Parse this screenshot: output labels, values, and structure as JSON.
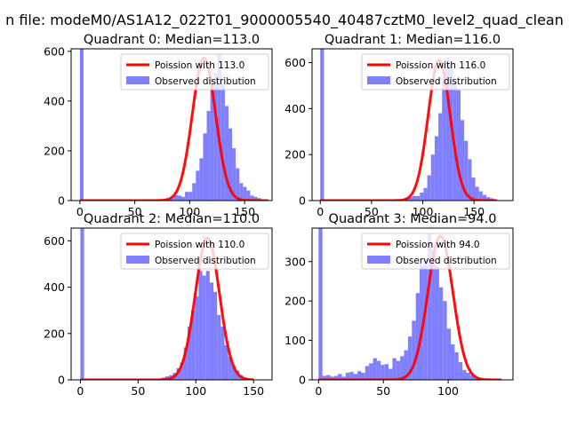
{
  "suptitle": "n file: modeM0/AS1A12_022T01_9000005540_40487cztM0_level2_quad_clean",
  "colors": {
    "hist": "#8080ff",
    "poisson": "#ff0000"
  },
  "chart_data": [
    {
      "type": "bar",
      "title": "Quadrant 0: Median=113.0",
      "median": 113.0,
      "xlim": [
        -8,
        175
      ],
      "ylim": [
        0,
        610
      ],
      "xticks": [
        0,
        50,
        100,
        150
      ],
      "yticks": [
        0,
        200,
        400,
        600
      ],
      "legend": [
        "Poission with 113.0",
        "Observed distribution"
      ],
      "legend_position": "top-right",
      "poisson_lambda": 113.0,
      "poisson_peak": 573,
      "bin_start": 0,
      "bin_width": 3.3,
      "values": [
        1200,
        0,
        0,
        0,
        0,
        0,
        0,
        0,
        0,
        0,
        0,
        0,
        0,
        0,
        0,
        0,
        0,
        0,
        0,
        0,
        0,
        0,
        0,
        0,
        0,
        10,
        22,
        20,
        15,
        35,
        35,
        70,
        120,
        170,
        270,
        360,
        470,
        510,
        590,
        470,
        380,
        290,
        210,
        130,
        70,
        55,
        40,
        20,
        15,
        10,
        5,
        0
      ]
    },
    {
      "type": "bar",
      "title": "Quadrant 1: Median=116.0",
      "median": 116.0,
      "xlim": [
        -8,
        188
      ],
      "ylim": [
        0,
        660
      ],
      "xticks": [
        0,
        50,
        100,
        150
      ],
      "yticks": [
        0,
        200,
        400,
        600
      ],
      "legend": [
        "Poission with 116.0",
        "Observed distribution"
      ],
      "legend_position": "top-right",
      "poisson_lambda": 116.0,
      "poisson_peak": 611,
      "bin_start": 0,
      "bin_width": 3.6,
      "values": [
        1200,
        0,
        0,
        0,
        0,
        0,
        0,
        0,
        0,
        0,
        0,
        0,
        0,
        0,
        0,
        0,
        0,
        0,
        0,
        0,
        0,
        0,
        0,
        12,
        15,
        20,
        20,
        35,
        55,
        110,
        200,
        280,
        380,
        530,
        620,
        590,
        520,
        480,
        350,
        260,
        180,
        100,
        60,
        40,
        25,
        15,
        10,
        0
      ]
    },
    {
      "type": "bar",
      "title": "Quadrant 2: Median=110.0",
      "median": 110.0,
      "xlim": [
        -8,
        166
      ],
      "ylim": [
        0,
        655
      ],
      "xticks": [
        0,
        50,
        100,
        150
      ],
      "yticks": [
        0,
        200,
        400,
        600
      ],
      "legend": [
        "Poission with 110.0",
        "Observed distribution"
      ],
      "legend_position": "top-right",
      "poisson_lambda": 110.0,
      "poisson_peak": 612,
      "bin_start": 0,
      "bin_width": 3.2,
      "values": [
        1200,
        0,
        0,
        0,
        0,
        0,
        0,
        0,
        0,
        0,
        0,
        0,
        0,
        0,
        0,
        0,
        0,
        0,
        0,
        0,
        0,
        5,
        10,
        15,
        20,
        30,
        50,
        75,
        140,
        230,
        300,
        360,
        470,
        450,
        470,
        420,
        380,
        280,
        230,
        150,
        100,
        60,
        40,
        20,
        10,
        5,
        0
      ]
    },
    {
      "type": "bar",
      "title": "Quadrant 3: Median=94.0",
      "median": 94.0,
      "xlim": [
        -5,
        150
      ],
      "ylim": [
        0,
        385
      ],
      "xticks": [
        0,
        50,
        100
      ],
      "yticks": [
        0,
        100,
        200,
        300
      ],
      "legend": [
        "Poission with 94.0",
        "Observed distribution"
      ],
      "legend_position": "top-right",
      "poisson_lambda": 94.0,
      "poisson_peak": 365,
      "bin_start": 0,
      "bin_width": 3.0,
      "values": [
        600,
        10,
        12,
        8,
        10,
        15,
        8,
        18,
        20,
        15,
        22,
        18,
        35,
        42,
        55,
        48,
        38,
        40,
        28,
        55,
        48,
        60,
        75,
        110,
        150,
        220,
        290,
        305,
        370,
        330,
        290,
        235,
        200,
        130,
        90,
        70,
        45,
        25,
        18,
        12,
        5,
        0,
        0,
        0,
        0,
        0,
        0
      ]
    }
  ]
}
